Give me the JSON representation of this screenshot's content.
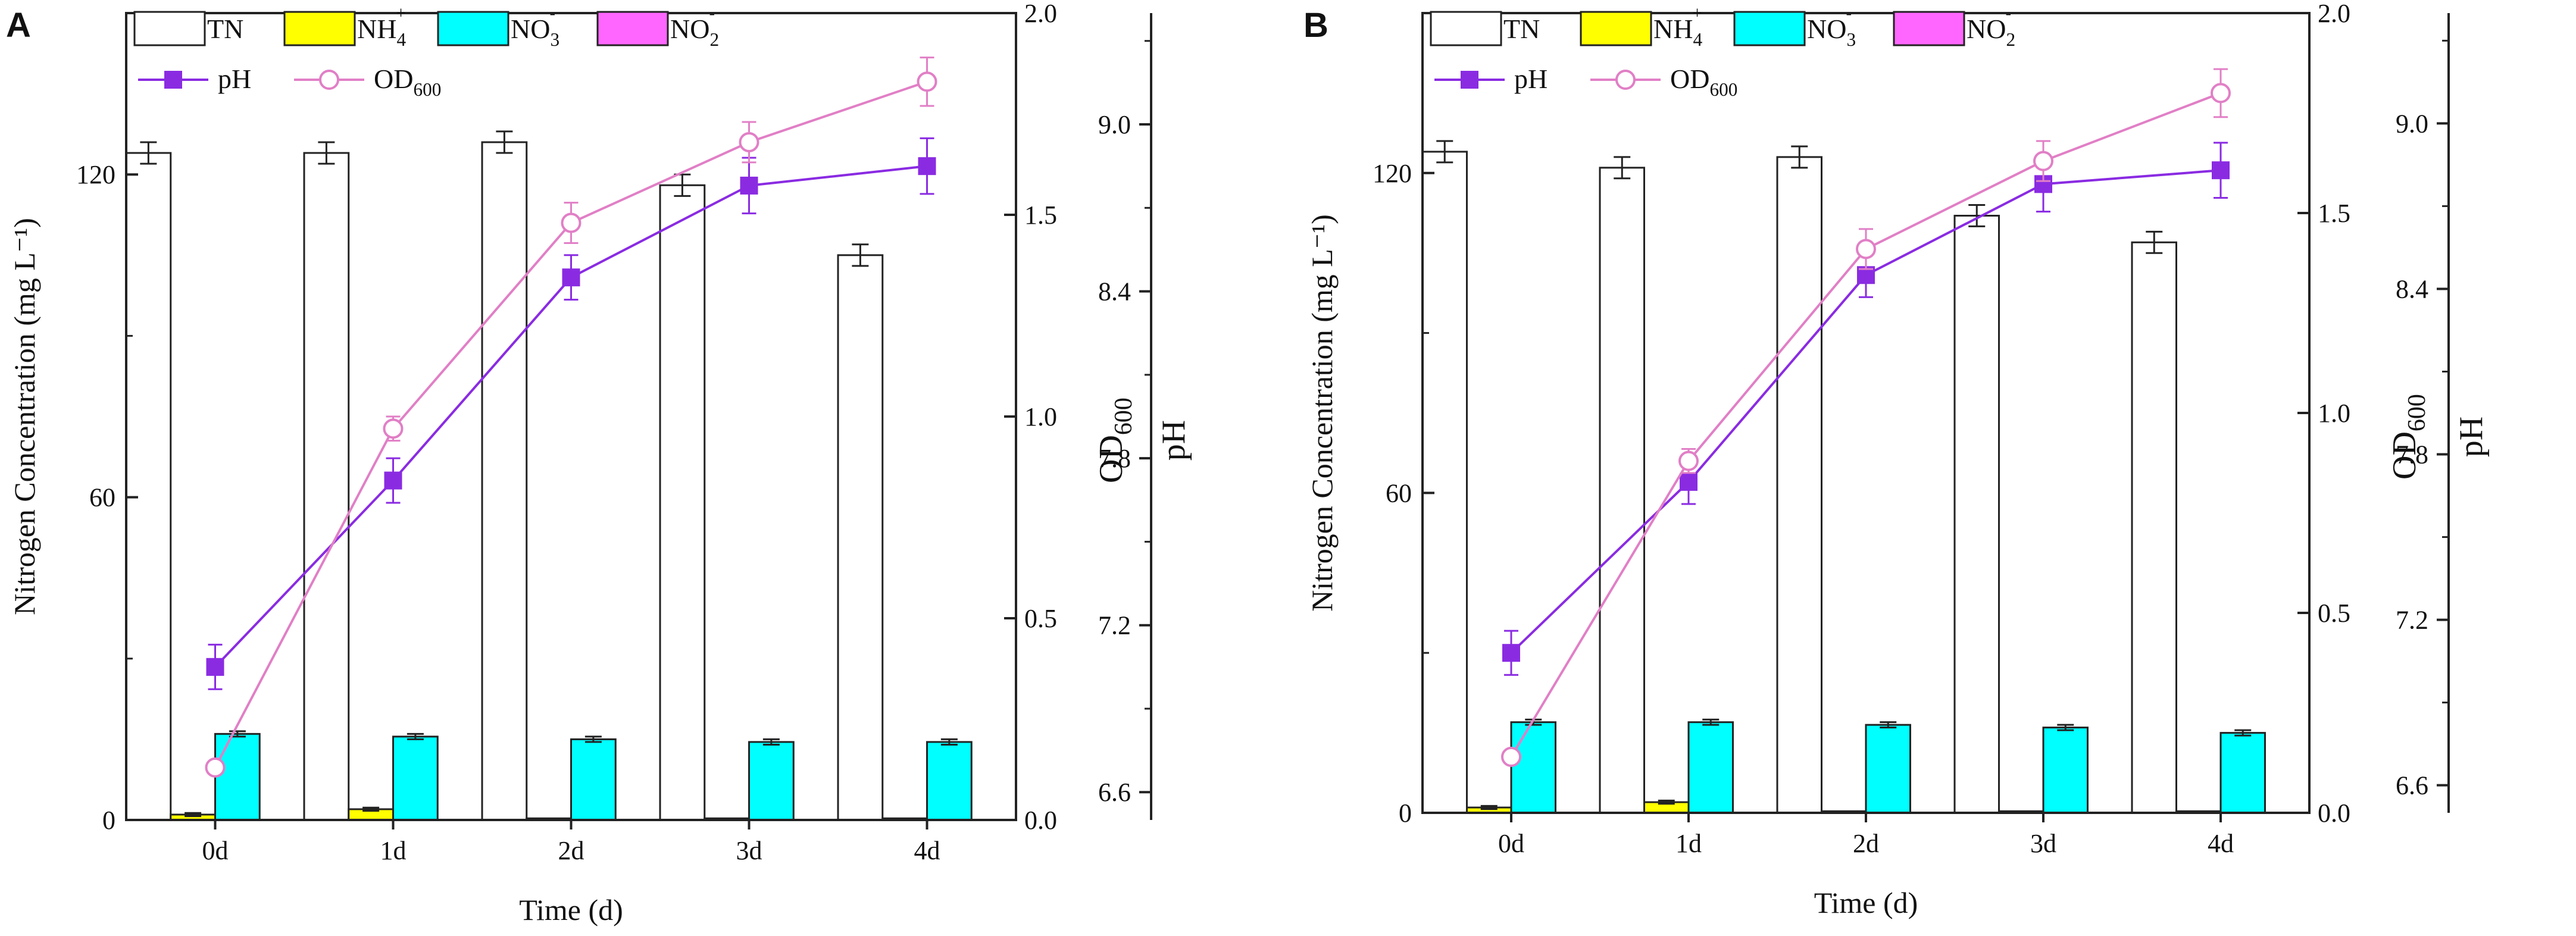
{
  "chart_data": [
    {
      "panel_label": "A",
      "type": "bar+line",
      "categories": [
        "0d",
        "1d",
        "2d",
        "3d",
        "4d"
      ],
      "xlabel": "Time (d)",
      "ylabel": "Nitrogen Concentration (mg L⁻¹)",
      "ylim": [
        0,
        150
      ],
      "yticks": [
        "0",
        "60",
        "120"
      ],
      "y2label": "OD",
      "y2label_sub": "600",
      "y2lim": [
        0,
        2.0
      ],
      "y2ticks": [
        "0.0",
        "0.5",
        "1.0",
        "1.5",
        "2.0"
      ],
      "y3label": "pH",
      "y3lim": [
        6.5,
        9.4
      ],
      "y3ticks": [
        "6.6",
        "7.2",
        "7.8",
        "8.4",
        "9.0"
      ],
      "bar_series": [
        {
          "name": "TN",
          "color": "#ffffff",
          "values": [
            124,
            124,
            126,
            118,
            105
          ],
          "errors": [
            2,
            2,
            2,
            2,
            2
          ]
        },
        {
          "name": "NH4+",
          "color": "#ffff00",
          "values": [
            1,
            2,
            0.3,
            0.3,
            0.3
          ],
          "errors": [
            0.3,
            0.3,
            0.1,
            0.1,
            0.1
          ]
        },
        {
          "name": "NO3-",
          "color": "#00ffff",
          "values": [
            16,
            15.5,
            15,
            14.5,
            14.5
          ],
          "errors": [
            0.5,
            0.5,
            0.5,
            0.5,
            0.5
          ]
        },
        {
          "name": "NO2-",
          "color": "#ff66ff",
          "values": [
            0,
            0,
            0,
            0,
            0
          ],
          "errors": [
            0,
            0,
            0,
            0,
            0
          ]
        }
      ],
      "line_series": [
        {
          "name": "pH",
          "axis": "y3",
          "color": "#8a2be2",
          "marker": "filled-square",
          "values": [
            7.05,
            7.72,
            8.45,
            8.78,
            8.85
          ],
          "errors": [
            0.08,
            0.08,
            0.08,
            0.1,
            0.1
          ]
        },
        {
          "name": "OD600",
          "axis": "y2",
          "color": "#e17fc6",
          "marker": "open-circle",
          "values": [
            0.13,
            0.97,
            1.48,
            1.68,
            1.83
          ],
          "errors": [
            0.01,
            0.03,
            0.05,
            0.05,
            0.06
          ]
        }
      ],
      "legend": {
        "bars": [
          {
            "text": "TN",
            "sup": ""
          },
          {
            "text": "NH",
            "sub": "4",
            "sup": "+"
          },
          {
            "text": "NO",
            "sub": "3",
            "sup": "-"
          },
          {
            "text": "NO",
            "sub": "2",
            "sup": "-"
          }
        ],
        "lines": [
          {
            "text": "pH",
            "sub": ""
          },
          {
            "text": "OD",
            "sub": "600"
          }
        ]
      }
    },
    {
      "panel_label": "B",
      "type": "bar+line",
      "categories": [
        "0d",
        "1d",
        "2d",
        "3d",
        "4d"
      ],
      "xlabel": "Time (d)",
      "ylabel": "Nitrogen Concentration (mg L⁻¹)",
      "ylim": [
        0,
        150
      ],
      "yticks": [
        "0",
        "60",
        "120"
      ],
      "y2label": "OD",
      "y2label_sub": "600",
      "y2lim": [
        0,
        2.0
      ],
      "y2ticks": [
        "0.0",
        "0.5",
        "1.0",
        "1.5",
        "2.0"
      ],
      "y3label": "pH",
      "y3lim": [
        6.5,
        9.4
      ],
      "y3ticks": [
        "6.6",
        "7.2",
        "7.8",
        "8.4",
        "9.0"
      ],
      "bar_series": [
        {
          "name": "TN",
          "color": "#ffffff",
          "values": [
            124,
            121,
            123,
            112,
            107
          ],
          "errors": [
            2,
            2,
            2,
            2,
            2
          ]
        },
        {
          "name": "NH4+",
          "color": "#ffff00",
          "values": [
            1,
            2,
            0.3,
            0.3,
            0.3
          ],
          "errors": [
            0.3,
            0.3,
            0.1,
            0.1,
            0.1
          ]
        },
        {
          "name": "NO3-",
          "color": "#00ffff",
          "values": [
            17,
            17,
            16.5,
            16,
            15
          ],
          "errors": [
            0.5,
            0.5,
            0.5,
            0.5,
            0.5
          ]
        },
        {
          "name": "NO2-",
          "color": "#ff66ff",
          "values": [
            0,
            0,
            0,
            0,
            0
          ],
          "errors": [
            0,
            0,
            0,
            0,
            0
          ]
        }
      ],
      "line_series": [
        {
          "name": "pH",
          "axis": "y3",
          "color": "#8a2be2",
          "marker": "filled-square",
          "values": [
            7.08,
            7.7,
            8.45,
            8.78,
            8.83
          ],
          "errors": [
            0.08,
            0.08,
            0.08,
            0.1,
            0.1
          ]
        },
        {
          "name": "OD600",
          "axis": "y2",
          "color": "#e17fc6",
          "marker": "open-circle",
          "values": [
            0.14,
            0.88,
            1.41,
            1.63,
            1.8
          ],
          "errors": [
            0.01,
            0.03,
            0.05,
            0.05,
            0.06
          ]
        }
      ],
      "legend": {
        "bars": [
          {
            "text": "TN",
            "sup": ""
          },
          {
            "text": "NH",
            "sub": "4",
            "sup": "+"
          },
          {
            "text": "NO",
            "sub": "3",
            "sup": "-"
          },
          {
            "text": "NO",
            "sub": "2",
            "sup": "-"
          }
        ],
        "lines": [
          {
            "text": "pH",
            "sub": ""
          },
          {
            "text": "OD",
            "sub": "600"
          }
        ]
      }
    }
  ]
}
